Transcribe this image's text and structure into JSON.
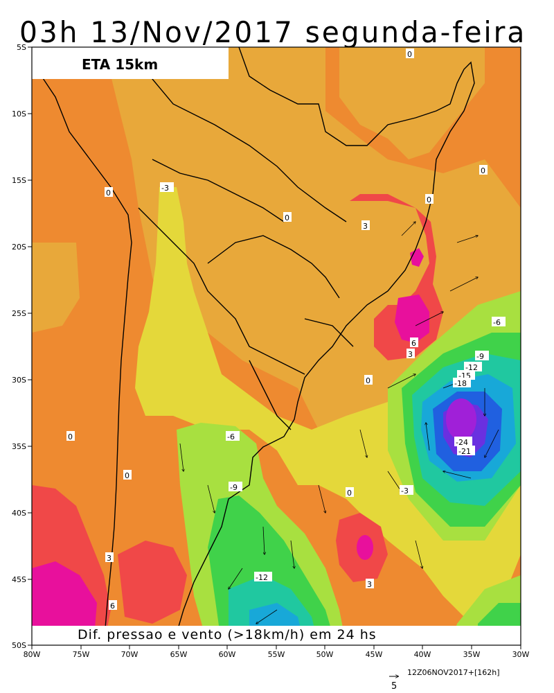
{
  "title": "03h 13/Nov/2017 segunda-feira",
  "model_label": "ETA 15km",
  "bottom_caption": "Dif. pressao e vento (>18km/h) em 24 hs",
  "run_label": "12Z06NOV2017+[162h]",
  "vector_scale_label": "5",
  "lat_ticks": [
    "5S",
    "10S",
    "15S",
    "20S",
    "25S",
    "30S",
    "35S",
    "40S",
    "45S",
    "50S"
  ],
  "lon_ticks": [
    "80W",
    "75W",
    "70W",
    "65W",
    "60W",
    "55W",
    "50W",
    "45W",
    "40W",
    "35W",
    "30W"
  ],
  "contour_labels": [
    "0",
    "0",
    "0",
    "0",
    "0",
    "0",
    "0",
    "0",
    "0",
    "0",
    "0",
    "0",
    "3",
    "3",
    "3",
    "3",
    "-3",
    "-3",
    "6",
    "6",
    "-6",
    "-6",
    "-9",
    "-9",
    "-12",
    "-12",
    "-15",
    "-18",
    "-21",
    "-24"
  ],
  "colors": {
    "orange_0": "#ee8a30",
    "orange_light": "#e8a83a",
    "yellow_-3": "#e4d83a",
    "lime_-6": "#a8e040",
    "green_-9": "#40d24a",
    "teal_-12": "#20c8a0",
    "cyan_-15": "#18a8d8",
    "blue_-18": "#2060e0",
    "violet_-21": "#6a30e0",
    "purple_-24": "#a020d8",
    "red_3": "#f04848",
    "magenta_6": "#e8109c"
  }
}
